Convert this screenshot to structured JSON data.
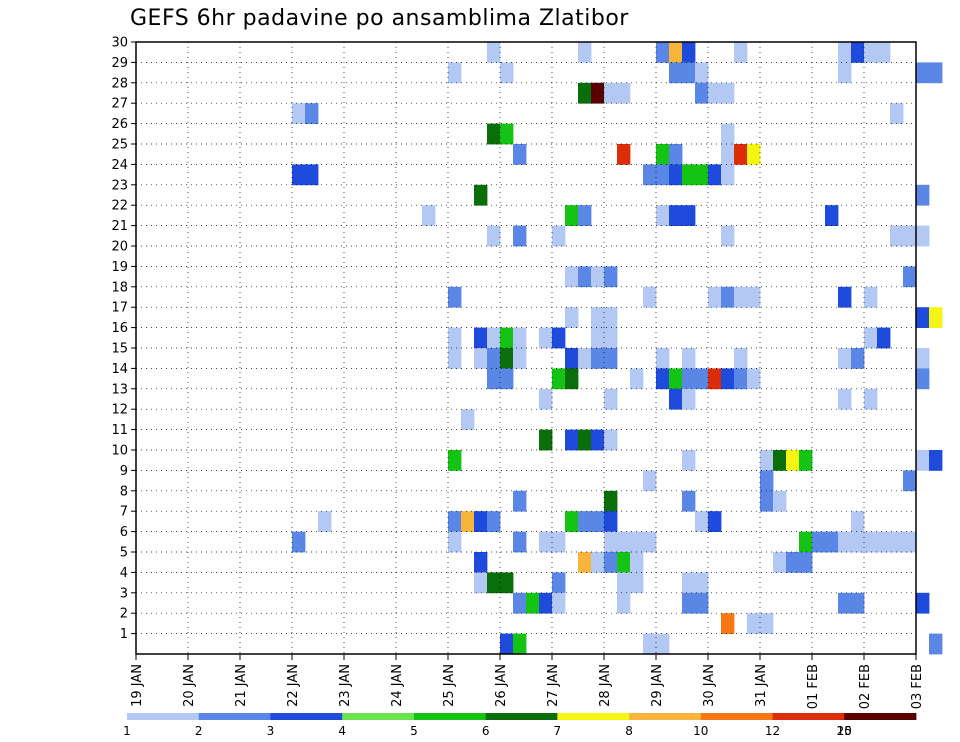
{
  "chart_data": {
    "type": "heatmap",
    "title": "GEFS 6hr padavine po ansamblima Zlatibor",
    "xlabel": "",
    "ylabel": "",
    "x_ticks": [
      "19 JAN",
      "20 JAN",
      "21 JAN",
      "22 JAN",
      "23 JAN",
      "24 JAN",
      "25 JAN",
      "26 JAN",
      "27 JAN",
      "28 JAN",
      "29 JAN",
      "30 JAN",
      "31 JAN",
      "01 FEB",
      "02 FEB",
      "03 FEB"
    ],
    "y_ticks": [
      "1",
      "2",
      "3",
      "4",
      "5",
      "6",
      "7",
      "8",
      "9",
      "10",
      "11",
      "12",
      "13",
      "14",
      "15",
      "16",
      "17",
      "18",
      "19",
      "20",
      "21",
      "22",
      "23",
      "24",
      "25",
      "26",
      "27",
      "28",
      "29",
      "30"
    ],
    "x_step_hours": 6,
    "ylim": [
      0,
      30
    ],
    "grid": true,
    "legend_position": "bottom",
    "color_levels": [
      {
        "label": "1",
        "color": "#b4c8f4"
      },
      {
        "label": "2",
        "color": "#5a87e6"
      },
      {
        "label": "3",
        "color": "#1e4bdc"
      },
      {
        "label": "4",
        "color": "#6be250"
      },
      {
        "label": "5",
        "color": "#14c314"
      },
      {
        "label": "6",
        "color": "#0a6e0a"
      },
      {
        "label": "7",
        "color": "#f5f514"
      },
      {
        "label": "8",
        "color": "#f9b43c"
      },
      {
        "label": "10",
        "color": "#f57814"
      },
      {
        "label": "12",
        "color": "#dc2d0a"
      },
      {
        "label": "15",
        "color": "#a00a0a"
      },
      {
        "label": "20",
        "color": "#5a0000"
      }
    ],
    "cells": [
      {
        "t": 27,
        "m": 30,
        "c": 0
      },
      {
        "t": 34,
        "m": 30,
        "c": 0
      },
      {
        "t": 40,
        "m": 30,
        "c": 1
      },
      {
        "t": 41,
        "m": 30,
        "c": 7
      },
      {
        "t": 42,
        "m": 30,
        "c": 2
      },
      {
        "t": 46,
        "m": 30,
        "c": 0
      },
      {
        "t": 54,
        "m": 30,
        "c": 0
      },
      {
        "t": 55,
        "m": 30,
        "c": 2
      },
      {
        "t": 56,
        "m": 30,
        "c": 0
      },
      {
        "t": 57,
        "m": 30,
        "c": 0
      },
      {
        "t": 24,
        "m": 29,
        "c": 0
      },
      {
        "t": 28,
        "m": 29,
        "c": 0
      },
      {
        "t": 41,
        "m": 29,
        "c": 1
      },
      {
        "t": 42,
        "m": 29,
        "c": 1
      },
      {
        "t": 43,
        "m": 29,
        "c": 0
      },
      {
        "t": 54,
        "m": 29,
        "c": 0
      },
      {
        "t": 60,
        "m": 29,
        "c": 1
      },
      {
        "t": 61,
        "m": 29,
        "c": 1
      },
      {
        "t": 34,
        "m": 28,
        "c": 5
      },
      {
        "t": 35,
        "m": 28,
        "c": 11
      },
      {
        "t": 36,
        "m": 28,
        "c": 0
      },
      {
        "t": 37,
        "m": 28,
        "c": 0
      },
      {
        "t": 43,
        "m": 28,
        "c": 1
      },
      {
        "t": 44,
        "m": 28,
        "c": 0
      },
      {
        "t": 45,
        "m": 28,
        "c": 0
      },
      {
        "t": 12,
        "m": 27,
        "c": 0
      },
      {
        "t": 13,
        "m": 27,
        "c": 1
      },
      {
        "t": 58,
        "m": 27,
        "c": 0
      },
      {
        "t": 27,
        "m": 26,
        "c": 5
      },
      {
        "t": 28,
        "m": 26,
        "c": 4
      },
      {
        "t": 45,
        "m": 26,
        "c": 0
      },
      {
        "t": 29,
        "m": 25,
        "c": 1
      },
      {
        "t": 37,
        "m": 25,
        "c": 9
      },
      {
        "t": 40,
        "m": 25,
        "c": 4
      },
      {
        "t": 41,
        "m": 25,
        "c": 1
      },
      {
        "t": 45,
        "m": 25,
        "c": 0
      },
      {
        "t": 46,
        "m": 25,
        "c": 9
      },
      {
        "t": 47,
        "m": 25,
        "c": 6
      },
      {
        "t": 12,
        "m": 24,
        "c": 2
      },
      {
        "t": 13,
        "m": 24,
        "c": 2
      },
      {
        "t": 39,
        "m": 24,
        "c": 1
      },
      {
        "t": 40,
        "m": 24,
        "c": 1
      },
      {
        "t": 41,
        "m": 24,
        "c": 2
      },
      {
        "t": 42,
        "m": 24,
        "c": 4
      },
      {
        "t": 43,
        "m": 24,
        "c": 4
      },
      {
        "t": 44,
        "m": 24,
        "c": 2
      },
      {
        "t": 45,
        "m": 24,
        "c": 0
      },
      {
        "t": 26,
        "m": 23,
        "c": 5
      },
      {
        "t": 60,
        "m": 23,
        "c": 1
      },
      {
        "t": 22,
        "m": 22,
        "c": 0
      },
      {
        "t": 33,
        "m": 22,
        "c": 4
      },
      {
        "t": 34,
        "m": 22,
        "c": 1
      },
      {
        "t": 40,
        "m": 22,
        "c": 0
      },
      {
        "t": 41,
        "m": 22,
        "c": 2
      },
      {
        "t": 42,
        "m": 22,
        "c": 2
      },
      {
        "t": 53,
        "m": 22,
        "c": 2
      },
      {
        "t": 27,
        "m": 21,
        "c": 0
      },
      {
        "t": 29,
        "m": 21,
        "c": 1
      },
      {
        "t": 32,
        "m": 21,
        "c": 0
      },
      {
        "t": 45,
        "m": 21,
        "c": 0
      },
      {
        "t": 58,
        "m": 21,
        "c": 0
      },
      {
        "t": 59,
        "m": 21,
        "c": 0
      },
      {
        "t": 60,
        "m": 21,
        "c": 0
      },
      {
        "t": 33,
        "m": 19,
        "c": 0
      },
      {
        "t": 34,
        "m": 19,
        "c": 1
      },
      {
        "t": 35,
        "m": 19,
        "c": 0
      },
      {
        "t": 36,
        "m": 19,
        "c": 1
      },
      {
        "t": 59,
        "m": 19,
        "c": 1
      },
      {
        "t": 24,
        "m": 18,
        "c": 1
      },
      {
        "t": 39,
        "m": 18,
        "c": 0
      },
      {
        "t": 44,
        "m": 18,
        "c": 0
      },
      {
        "t": 45,
        "m": 18,
        "c": 1
      },
      {
        "t": 46,
        "m": 18,
        "c": 0
      },
      {
        "t": 47,
        "m": 18,
        "c": 0
      },
      {
        "t": 54,
        "m": 18,
        "c": 2
      },
      {
        "t": 56,
        "m": 18,
        "c": 0
      },
      {
        "t": 33,
        "m": 17,
        "c": 0
      },
      {
        "t": 35,
        "m": 17,
        "c": 0
      },
      {
        "t": 36,
        "m": 17,
        "c": 0
      },
      {
        "t": 60,
        "m": 17,
        "c": 2
      },
      {
        "t": 61,
        "m": 17,
        "c": 6
      },
      {
        "t": 24,
        "m": 16,
        "c": 0
      },
      {
        "t": 26,
        "m": 16,
        "c": 2
      },
      {
        "t": 27,
        "m": 16,
        "c": 0
      },
      {
        "t": 28,
        "m": 16,
        "c": 4
      },
      {
        "t": 29,
        "m": 16,
        "c": 0
      },
      {
        "t": 31,
        "m": 16,
        "c": 0
      },
      {
        "t": 32,
        "m": 16,
        "c": 2
      },
      {
        "t": 35,
        "m": 16,
        "c": 0
      },
      {
        "t": 36,
        "m": 16,
        "c": 0
      },
      {
        "t": 56,
        "m": 16,
        "c": 0
      },
      {
        "t": 57,
        "m": 16,
        "c": 2
      },
      {
        "t": 24,
        "m": 15,
        "c": 0
      },
      {
        "t": 26,
        "m": 15,
        "c": 0
      },
      {
        "t": 27,
        "m": 15,
        "c": 1
      },
      {
        "t": 28,
        "m": 15,
        "c": 5
      },
      {
        "t": 29,
        "m": 15,
        "c": 0
      },
      {
        "t": 33,
        "m": 15,
        "c": 2
      },
      {
        "t": 34,
        "m": 15,
        "c": 0
      },
      {
        "t": 35,
        "m": 15,
        "c": 1
      },
      {
        "t": 36,
        "m": 15,
        "c": 1
      },
      {
        "t": 40,
        "m": 15,
        "c": 0
      },
      {
        "t": 42,
        "m": 15,
        "c": 0
      },
      {
        "t": 46,
        "m": 15,
        "c": 0
      },
      {
        "t": 54,
        "m": 15,
        "c": 0
      },
      {
        "t": 55,
        "m": 15,
        "c": 1
      },
      {
        "t": 60,
        "m": 15,
        "c": 0
      },
      {
        "t": 27,
        "m": 14,
        "c": 1
      },
      {
        "t": 28,
        "m": 14,
        "c": 1
      },
      {
        "t": 32,
        "m": 14,
        "c": 4
      },
      {
        "t": 33,
        "m": 14,
        "c": 5
      },
      {
        "t": 38,
        "m": 14,
        "c": 0
      },
      {
        "t": 40,
        "m": 14,
        "c": 2
      },
      {
        "t": 41,
        "m": 14,
        "c": 4
      },
      {
        "t": 42,
        "m": 14,
        "c": 1
      },
      {
        "t": 43,
        "m": 14,
        "c": 1
      },
      {
        "t": 44,
        "m": 14,
        "c": 9
      },
      {
        "t": 45,
        "m": 14,
        "c": 2
      },
      {
        "t": 46,
        "m": 14,
        "c": 1
      },
      {
        "t": 47,
        "m": 14,
        "c": 0
      },
      {
        "t": 60,
        "m": 14,
        "c": 1
      },
      {
        "t": 31,
        "m": 13,
        "c": 0
      },
      {
        "t": 36,
        "m": 13,
        "c": 0
      },
      {
        "t": 41,
        "m": 13,
        "c": 2
      },
      {
        "t": 42,
        "m": 13,
        "c": 0
      },
      {
        "t": 54,
        "m": 13,
        "c": 0
      },
      {
        "t": 56,
        "m": 13,
        "c": 0
      },
      {
        "t": 25,
        "m": 12,
        "c": 0
      },
      {
        "t": 31,
        "m": 11,
        "c": 5
      },
      {
        "t": 33,
        "m": 11,
        "c": 2
      },
      {
        "t": 34,
        "m": 11,
        "c": 5
      },
      {
        "t": 35,
        "m": 11,
        "c": 2
      },
      {
        "t": 36,
        "m": 11,
        "c": 0
      },
      {
        "t": 24,
        "m": 10,
        "c": 4
      },
      {
        "t": 42,
        "m": 10,
        "c": 0
      },
      {
        "t": 48,
        "m": 10,
        "c": 0
      },
      {
        "t": 49,
        "m": 10,
        "c": 5
      },
      {
        "t": 50,
        "m": 10,
        "c": 6
      },
      {
        "t": 51,
        "m": 10,
        "c": 4
      },
      {
        "t": 60,
        "m": 10,
        "c": 0
      },
      {
        "t": 61,
        "m": 10,
        "c": 2
      },
      {
        "t": 39,
        "m": 9,
        "c": 0
      },
      {
        "t": 48,
        "m": 9,
        "c": 1
      },
      {
        "t": 59,
        "m": 9,
        "c": 1
      },
      {
        "t": 29,
        "m": 8,
        "c": 1
      },
      {
        "t": 36,
        "m": 8,
        "c": 5
      },
      {
        "t": 42,
        "m": 8,
        "c": 1
      },
      {
        "t": 48,
        "m": 8,
        "c": 1
      },
      {
        "t": 49,
        "m": 8,
        "c": 0
      },
      {
        "t": 14,
        "m": 7,
        "c": 0
      },
      {
        "t": 24,
        "m": 7,
        "c": 1
      },
      {
        "t": 25,
        "m": 7,
        "c": 7
      },
      {
        "t": 26,
        "m": 7,
        "c": 2
      },
      {
        "t": 27,
        "m": 7,
        "c": 1
      },
      {
        "t": 33,
        "m": 7,
        "c": 4
      },
      {
        "t": 34,
        "m": 7,
        "c": 1
      },
      {
        "t": 35,
        "m": 7,
        "c": 1
      },
      {
        "t": 36,
        "m": 7,
        "c": 2
      },
      {
        "t": 43,
        "m": 7,
        "c": 0
      },
      {
        "t": 44,
        "m": 7,
        "c": 2
      },
      {
        "t": 55,
        "m": 7,
        "c": 0
      },
      {
        "t": 12,
        "m": 6,
        "c": 1
      },
      {
        "t": 24,
        "m": 6,
        "c": 0
      },
      {
        "t": 29,
        "m": 6,
        "c": 1
      },
      {
        "t": 31,
        "m": 6,
        "c": 0
      },
      {
        "t": 32,
        "m": 6,
        "c": 0
      },
      {
        "t": 36,
        "m": 6,
        "c": 0
      },
      {
        "t": 37,
        "m": 6,
        "c": 0
      },
      {
        "t": 38,
        "m": 6,
        "c": 0
      },
      {
        "t": 39,
        "m": 6,
        "c": 0
      },
      {
        "t": 51,
        "m": 6,
        "c": 4
      },
      {
        "t": 52,
        "m": 6,
        "c": 1
      },
      {
        "t": 53,
        "m": 6,
        "c": 1
      },
      {
        "t": 54,
        "m": 6,
        "c": 0
      },
      {
        "t": 55,
        "m": 6,
        "c": 0
      },
      {
        "t": 56,
        "m": 6,
        "c": 0
      },
      {
        "t": 57,
        "m": 6,
        "c": 0
      },
      {
        "t": 58,
        "m": 6,
        "c": 0
      },
      {
        "t": 59,
        "m": 6,
        "c": 0
      },
      {
        "t": 26,
        "m": 5,
        "c": 2
      },
      {
        "t": 34,
        "m": 5,
        "c": 7
      },
      {
        "t": 35,
        "m": 5,
        "c": 0
      },
      {
        "t": 36,
        "m": 5,
        "c": 1
      },
      {
        "t": 37,
        "m": 5,
        "c": 4
      },
      {
        "t": 38,
        "m": 5,
        "c": 0
      },
      {
        "t": 49,
        "m": 5,
        "c": 0
      },
      {
        "t": 50,
        "m": 5,
        "c": 1
      },
      {
        "t": 51,
        "m": 5,
        "c": 1
      },
      {
        "t": 26,
        "m": 4,
        "c": 0
      },
      {
        "t": 27,
        "m": 4,
        "c": 5
      },
      {
        "t": 28,
        "m": 4,
        "c": 5
      },
      {
        "t": 32,
        "m": 4,
        "c": 1
      },
      {
        "t": 37,
        "m": 4,
        "c": 0
      },
      {
        "t": 38,
        "m": 4,
        "c": 0
      },
      {
        "t": 42,
        "m": 4,
        "c": 0
      },
      {
        "t": 43,
        "m": 4,
        "c": 0
      },
      {
        "t": 29,
        "m": 3,
        "c": 1
      },
      {
        "t": 30,
        "m": 3,
        "c": 4
      },
      {
        "t": 31,
        "m": 3,
        "c": 2
      },
      {
        "t": 32,
        "m": 3,
        "c": 0
      },
      {
        "t": 37,
        "m": 3,
        "c": 0
      },
      {
        "t": 42,
        "m": 3,
        "c": 1
      },
      {
        "t": 43,
        "m": 3,
        "c": 1
      },
      {
        "t": 54,
        "m": 3,
        "c": 1
      },
      {
        "t": 55,
        "m": 3,
        "c": 1
      },
      {
        "t": 60,
        "m": 3,
        "c": 2
      },
      {
        "t": 45,
        "m": 2,
        "c": 8
      },
      {
        "t": 47,
        "m": 2,
        "c": 0
      },
      {
        "t": 48,
        "m": 2,
        "c": 0
      },
      {
        "t": 28,
        "m": 1,
        "c": 2
      },
      {
        "t": 29,
        "m": 1,
        "c": 4
      },
      {
        "t": 39,
        "m": 1,
        "c": 0
      },
      {
        "t": 40,
        "m": 1,
        "c": 0
      },
      {
        "t": 61,
        "m": 1,
        "c": 1
      }
    ]
  }
}
